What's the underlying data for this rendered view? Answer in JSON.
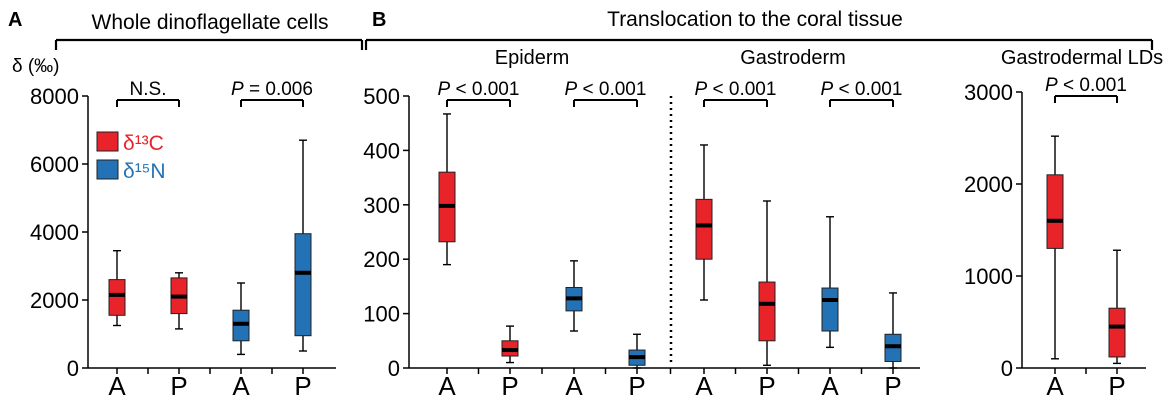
{
  "figure": {
    "colors": {
      "c13": "#e8232a",
      "n15": "#2272b5",
      "median": "#000000"
    },
    "legend": {
      "items": [
        {
          "label": "δ¹³C",
          "color": "#e8232a"
        },
        {
          "label": "δ¹⁵N",
          "color": "#2272b5"
        }
      ]
    }
  },
  "chart_data": [
    {
      "type": "box",
      "panel_letter": "A",
      "title": "Whole dinoflagellate cells",
      "ylabel": "δ (‰)",
      "ylim": [
        0,
        8000
      ],
      "yticks": [
        0,
        2000,
        4000,
        6000,
        8000
      ],
      "categories": [
        "A",
        "P",
        "A",
        "P"
      ],
      "boxes": [
        {
          "category": "A",
          "isotope": "δ13C",
          "whisker_low": 1250,
          "q1": 1550,
          "median": 2150,
          "q3": 2600,
          "whisker_high": 3450
        },
        {
          "category": "P",
          "isotope": "δ13C",
          "whisker_low": 1150,
          "q1": 1600,
          "median": 2100,
          "q3": 2650,
          "whisker_high": 2800
        },
        {
          "category": "A",
          "isotope": "δ15N",
          "whisker_low": 400,
          "q1": 800,
          "median": 1300,
          "q3": 1700,
          "whisker_high": 2500
        },
        {
          "category": "P",
          "isotope": "δ15N",
          "whisker_low": 500,
          "q1": 950,
          "median": 2800,
          "q3": 3950,
          "whisker_high": 6700
        }
      ],
      "comparisons": [
        {
          "boxes": [
            0,
            1
          ],
          "label": "N.S."
        },
        {
          "boxes": [
            2,
            3
          ],
          "label": "P = 0.006"
        }
      ]
    },
    {
      "type": "box",
      "panel_letter": "B",
      "title": "Translocation to the coral tissue",
      "subplots": [
        {
          "subtitle": "Epiderm",
          "ylim": [
            0,
            500
          ],
          "yticks": [
            0,
            100,
            200,
            300,
            400,
            500
          ],
          "categories": [
            "A",
            "P",
            "A",
            "P"
          ],
          "boxes": [
            {
              "category": "A",
              "isotope": "δ13C",
              "whisker_low": 190,
              "q1": 232,
              "median": 298,
              "q3": 360,
              "whisker_high": 467
            },
            {
              "category": "P",
              "isotope": "δ13C",
              "whisker_low": 10,
              "q1": 22,
              "median": 33,
              "q3": 50,
              "whisker_high": 77
            },
            {
              "category": "A",
              "isotope": "δ15N",
              "whisker_low": 68,
              "q1": 105,
              "median": 128,
              "q3": 148,
              "whisker_high": 197
            },
            {
              "category": "P",
              "isotope": "δ15N",
              "whisker_low": 0,
              "q1": 5,
              "median": 20,
              "q3": 33,
              "whisker_high": 62
            }
          ],
          "comparisons": [
            {
              "boxes": [
                0,
                1
              ],
              "label": "P < 0.001"
            },
            {
              "boxes": [
                2,
                3
              ],
              "label": "P < 0.001"
            }
          ]
        },
        {
          "subtitle": "Gastroderm",
          "ylim": [
            0,
            500
          ],
          "categories": [
            "A",
            "P",
            "A",
            "P"
          ],
          "boxes": [
            {
              "category": "A",
              "isotope": "δ13C",
              "whisker_low": 125,
              "q1": 200,
              "median": 262,
              "q3": 310,
              "whisker_high": 410
            },
            {
              "category": "P",
              "isotope": "δ13C",
              "whisker_low": 5,
              "q1": 50,
              "median": 118,
              "q3": 158,
              "whisker_high": 307
            },
            {
              "category": "A",
              "isotope": "δ15N",
              "whisker_low": 38,
              "q1": 68,
              "median": 125,
              "q3": 147,
              "whisker_high": 278
            },
            {
              "category": "P",
              "isotope": "δ15N",
              "whisker_low": 0,
              "q1": 12,
              "median": 40,
              "q3": 62,
              "whisker_high": 138
            }
          ],
          "comparisons": [
            {
              "boxes": [
                0,
                1
              ],
              "label": "P < 0.001"
            },
            {
              "boxes": [
                2,
                3
              ],
              "label": "P < 0.001"
            }
          ]
        },
        {
          "subtitle": "Gastrodermal LDs",
          "ylim": [
            0,
            3000
          ],
          "yticks": [
            0,
            1000,
            2000,
            3000
          ],
          "categories": [
            "A",
            "P"
          ],
          "boxes": [
            {
              "category": "A",
              "isotope": "δ13C",
              "whisker_low": 100,
              "q1": 1300,
              "median": 1600,
              "q3": 2100,
              "whisker_high": 2520
            },
            {
              "category": "P",
              "isotope": "δ13C",
              "whisker_low": 50,
              "q1": 120,
              "median": 450,
              "q3": 650,
              "whisker_high": 1280
            }
          ],
          "comparisons": [
            {
              "boxes": [
                0,
                1
              ],
              "label": "P < 0.001"
            }
          ]
        }
      ]
    }
  ]
}
